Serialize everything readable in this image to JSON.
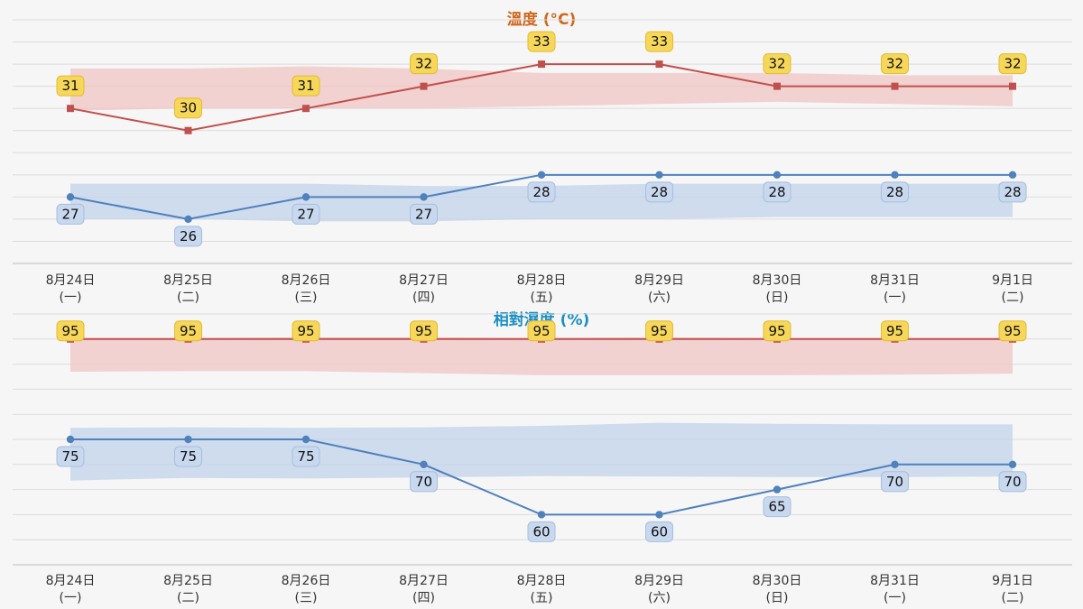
{
  "colors": {
    "max_line": "#c0504d",
    "min_line": "#4f81bd",
    "max_band": "#f0c4c4",
    "min_band": "#c2d3ea",
    "max_label_bg": "#f6d75a",
    "min_label_bg": "#c8d8ef",
    "temp_title": "#d0661a",
    "rh_title": "#1a8ec3",
    "grid": "#dcdcdc"
  },
  "chart_data": [
    {
      "type": "line",
      "title": "溫度 (°C)",
      "categories": [
        "8月24日",
        "8月25日",
        "8月26日",
        "8月27日",
        "8月28日",
        "8月29日",
        "8月30日",
        "8月31日",
        "9月1日"
      ],
      "weekdays": [
        "(一)",
        "(二)",
        "(三)",
        "(四)",
        "(五)",
        "(六)",
        "(日)",
        "(一)",
        "(二)"
      ],
      "series": [
        {
          "role": "max",
          "values": [
            31,
            30,
            31,
            32,
            33,
            33,
            32,
            32,
            32
          ],
          "band_upper": [
            32.8,
            32.8,
            32.9,
            32.8,
            32.6,
            32.6,
            32.6,
            32.5,
            32.5
          ],
          "band_lower": [
            30.9,
            31.0,
            31.0,
            31.0,
            31.1,
            31.2,
            31.3,
            31.2,
            31.1
          ]
        },
        {
          "role": "min",
          "values": [
            27,
            26,
            27,
            27,
            28,
            28,
            28,
            28,
            28
          ],
          "band_upper": [
            27.6,
            27.6,
            27.6,
            27.5,
            27.5,
            27.6,
            27.6,
            27.6,
            27.6
          ],
          "band_lower": [
            26.0,
            26.0,
            25.9,
            25.9,
            26.0,
            26.0,
            26.1,
            26.1,
            26.1
          ]
        }
      ],
      "ylim": [
        24,
        35
      ],
      "yticks": [
        24,
        25,
        26,
        27,
        28,
        29,
        30,
        31,
        32,
        33,
        34,
        35
      ],
      "grid": true
    },
    {
      "type": "line",
      "title": "相對濕度 (%)",
      "categories": [
        "8月24日",
        "8月25日",
        "8月26日",
        "8月27日",
        "8月28日",
        "8月29日",
        "8月30日",
        "8月31日",
        "9月1日"
      ],
      "weekdays": [
        "(一)",
        "(二)",
        "(三)",
        "(四)",
        "(五)",
        "(六)",
        "(日)",
        "(一)",
        "(二)"
      ],
      "series": [
        {
          "role": "max",
          "values": [
            95,
            95,
            95,
            95,
            95,
            95,
            95,
            95,
            95
          ],
          "band_upper": [
            95.2,
            95.2,
            95.3,
            95.3,
            95.2,
            95.3,
            95.2,
            95.2,
            95.1
          ],
          "band_lower": [
            88.5,
            88.6,
            88.6,
            88.2,
            87.8,
            87.8,
            87.8,
            87.9,
            88.1
          ]
        },
        {
          "role": "min",
          "values": [
            75,
            75,
            75,
            70,
            60,
            60,
            65,
            70,
            70
          ],
          "band_upper": [
            77.3,
            77.4,
            77.3,
            77.4,
            77.7,
            78.3,
            78.1,
            78.0,
            78.0
          ],
          "band_lower": [
            66.8,
            67.3,
            67.2,
            67.4,
            67.7,
            67.6,
            67.5,
            67.5,
            67.6
          ]
        }
      ],
      "ylim": [
        50,
        100
      ],
      "yticks": [
        50,
        55,
        60,
        65,
        70,
        75,
        80,
        85,
        90,
        95,
        100
      ],
      "grid": true
    }
  ]
}
